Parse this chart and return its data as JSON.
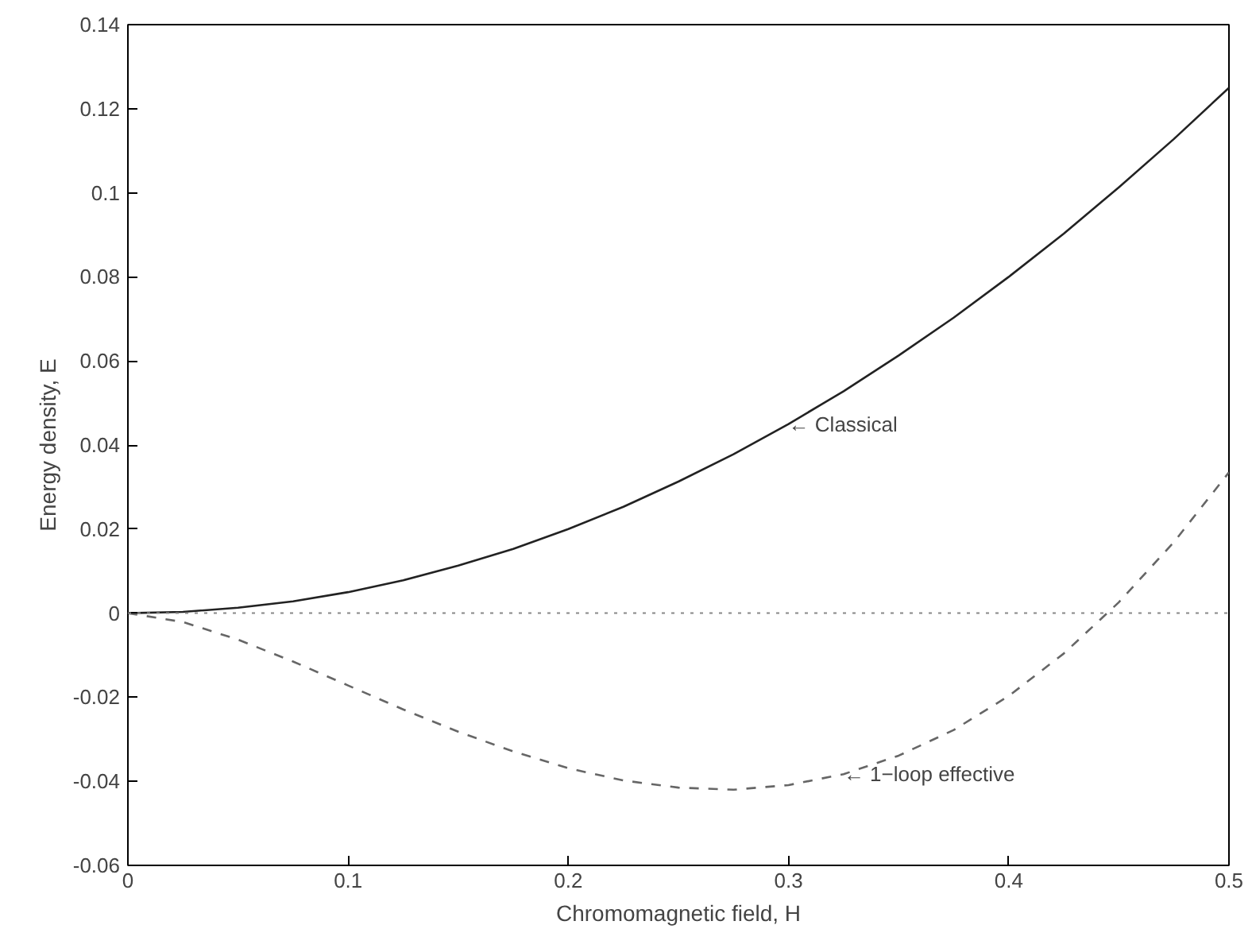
{
  "chart_data": {
    "type": "line",
    "xlabel": "Chromomagnetic field, H",
    "ylabel": "Energy density, E",
    "x": [
      0,
      0.025,
      0.05,
      0.075,
      0.1,
      0.125,
      0.15,
      0.175,
      0.2,
      0.225,
      0.25,
      0.275,
      0.3,
      0.325,
      0.35,
      0.375,
      0.4,
      0.425,
      0.45,
      0.475,
      0.5
    ],
    "series": [
      {
        "color": "#222222",
        "line_style": "solid",
        "values": [
          0,
          0.0003,
          0.0013,
          0.0028,
          0.005,
          0.0078,
          0.0113,
          0.0153,
          0.02,
          0.0253,
          0.0313,
          0.0378,
          0.045,
          0.0528,
          0.0613,
          0.0703,
          0.08,
          0.0903,
          0.1013,
          0.1128,
          0.125
        ]
      },
      {
        "color": "#666666",
        "line_style": "dashed",
        "values": [
          0,
          -0.0021,
          -0.0063,
          -0.0115,
          -0.0172,
          -0.0229,
          -0.0282,
          -0.0329,
          -0.0369,
          -0.0398,
          -0.0415,
          -0.042,
          -0.0409,
          -0.0383,
          -0.0339,
          -0.0278,
          -0.0197,
          -0.0096,
          0.0026,
          0.0169,
          0.0335
        ]
      }
    ],
    "ref_lines": [
      {
        "axis": "y",
        "value": 0,
        "color": "#888888",
        "line_style": "dotted"
      }
    ],
    "annotations": [
      {
        "text": "← Classical",
        "x": 0.3,
        "y": 0.045
      },
      {
        "text": "← 1−loop effective",
        "x": 0.325,
        "y": -0.0383
      }
    ],
    "xlim": [
      0,
      0.5
    ],
    "ylim": [
      -0.06,
      0.14
    ],
    "xticks": [
      0,
      0.1,
      0.2,
      0.3,
      0.4,
      0.5
    ],
    "yticks": [
      -0.06,
      -0.04,
      -0.02,
      0,
      0.02,
      0.04,
      0.06,
      0.08,
      0.1,
      0.12,
      0.14
    ],
    "grid": false
  }
}
